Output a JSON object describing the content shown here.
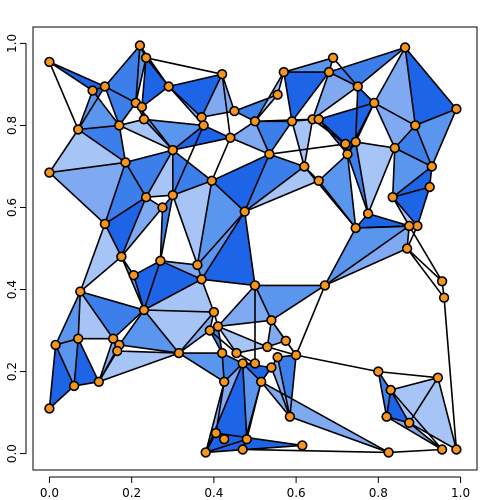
{
  "chart_data": {
    "type": "scatter",
    "subtype": "network-graph-with-filled-triangles",
    "title": "",
    "xlabel": "",
    "ylabel": "",
    "xlim": [
      -0.04,
      1.04
    ],
    "ylim": [
      -0.04,
      1.04
    ],
    "xticks": [
      "0.0",
      "0.2",
      "0.4",
      "0.6",
      "0.8",
      "1.0"
    ],
    "yticks": [
      "0.0",
      "0.2",
      "0.4",
      "0.6",
      "0.8",
      "1.0"
    ],
    "grid": false,
    "legend": "none",
    "colors": {
      "triangle_fill": [
        "#1E64E6",
        "#3C7FEA",
        "#5A96EE",
        "#7FAAF2",
        "#A6C4F6"
      ],
      "node_fill": "#F7941D",
      "stroke": "#000000"
    },
    "nodes": [
      [
        0.0,
        0.955
      ],
      [
        0.22,
        0.995
      ],
      [
        0.235,
        0.965
      ],
      [
        0.42,
        0.925
      ],
      [
        0.57,
        0.93
      ],
      [
        0.69,
        0.965
      ],
      [
        0.68,
        0.93
      ],
      [
        0.865,
        0.99
      ],
      [
        0.105,
        0.885
      ],
      [
        0.135,
        0.895
      ],
      [
        0.21,
        0.855
      ],
      [
        0.225,
        0.845
      ],
      [
        0.29,
        0.895
      ],
      [
        0.37,
        0.82
      ],
      [
        0.45,
        0.835
      ],
      [
        0.555,
        0.875
      ],
      [
        0.75,
        0.895
      ],
      [
        0.07,
        0.79
      ],
      [
        0.17,
        0.8
      ],
      [
        0.23,
        0.815
      ],
      [
        0.375,
        0.8
      ],
      [
        0.44,
        0.77
      ],
      [
        0.5,
        0.81
      ],
      [
        0.59,
        0.81
      ],
      [
        0.64,
        0.815
      ],
      [
        0.655,
        0.815
      ],
      [
        0.79,
        0.855
      ],
      [
        0.89,
        0.8
      ],
      [
        0.99,
        0.84
      ],
      [
        0.0,
        0.685
      ],
      [
        0.185,
        0.71
      ],
      [
        0.3,
        0.74
      ],
      [
        0.535,
        0.73
      ],
      [
        0.62,
        0.7
      ],
      [
        0.655,
        0.665
      ],
      [
        0.72,
        0.755
      ],
      [
        0.725,
        0.73
      ],
      [
        0.745,
        0.76
      ],
      [
        0.84,
        0.745
      ],
      [
        0.93,
        0.7
      ],
      [
        0.235,
        0.625
      ],
      [
        0.275,
        0.6
      ],
      [
        0.3,
        0.63
      ],
      [
        0.395,
        0.665
      ],
      [
        0.475,
        0.59
      ],
      [
        0.775,
        0.585
      ],
      [
        0.745,
        0.55
      ],
      [
        0.835,
        0.625
      ],
      [
        0.925,
        0.65
      ],
      [
        0.895,
        0.555
      ],
      [
        0.875,
        0.555
      ],
      [
        0.87,
        0.5
      ],
      [
        0.135,
        0.56
      ],
      [
        0.175,
        0.48
      ],
      [
        0.205,
        0.435
      ],
      [
        0.27,
        0.47
      ],
      [
        0.36,
        0.46
      ],
      [
        0.37,
        0.425
      ],
      [
        0.5,
        0.41
      ],
      [
        0.67,
        0.41
      ],
      [
        0.955,
        0.42
      ],
      [
        0.96,
        0.38
      ],
      [
        0.075,
        0.395
      ],
      [
        0.4,
        0.345
      ],
      [
        0.39,
        0.3
      ],
      [
        0.41,
        0.31
      ],
      [
        0.23,
        0.35
      ],
      [
        0.54,
        0.325
      ],
      [
        0.015,
        0.265
      ],
      [
        0.07,
        0.28
      ],
      [
        0.155,
        0.28
      ],
      [
        0.17,
        0.265
      ],
      [
        0.165,
        0.25
      ],
      [
        0.315,
        0.245
      ],
      [
        0.455,
        0.245
      ],
      [
        0.42,
        0.245
      ],
      [
        0.53,
        0.26
      ],
      [
        0.575,
        0.275
      ],
      [
        0.6,
        0.24
      ],
      [
        0.555,
        0.235
      ],
      [
        0.5,
        0.22
      ],
      [
        0.515,
        0.175
      ],
      [
        0.47,
        0.22
      ],
      [
        0.54,
        0.21
      ],
      [
        0.06,
        0.165
      ],
      [
        0.12,
        0.175
      ],
      [
        0.0,
        0.11
      ],
      [
        0.425,
        0.175
      ],
      [
        0.8,
        0.2
      ],
      [
        0.83,
        0.155
      ],
      [
        0.945,
        0.185
      ],
      [
        0.82,
        0.09
      ],
      [
        0.875,
        0.075
      ],
      [
        0.585,
        0.09
      ],
      [
        0.425,
        0.035
      ],
      [
        0.405,
        0.05
      ],
      [
        0.38,
        0.003
      ],
      [
        0.48,
        0.035
      ],
      [
        0.47,
        0.01
      ],
      [
        0.615,
        0.02
      ],
      [
        0.825,
        0.003
      ],
      [
        0.955,
        0.01
      ],
      [
        0.99,
        0.01
      ]
    ],
    "triangles": [
      [
        0,
        9,
        8
      ],
      [
        8,
        9,
        17
      ],
      [
        8,
        17,
        18
      ],
      [
        1,
        2,
        10
      ],
      [
        2,
        12,
        11
      ],
      [
        1,
        9,
        10
      ],
      [
        9,
        10,
        18
      ],
      [
        10,
        11,
        19
      ],
      [
        12,
        13,
        20
      ],
      [
        12,
        3,
        13
      ],
      [
        3,
        14,
        13
      ],
      [
        14,
        15,
        22
      ],
      [
        15,
        4,
        22
      ],
      [
        4,
        6,
        23
      ],
      [
        4,
        5,
        6
      ],
      [
        6,
        7,
        16
      ],
      [
        6,
        16,
        24
      ],
      [
        16,
        26,
        37
      ],
      [
        7,
        27,
        26
      ],
      [
        7,
        28,
        27
      ],
      [
        27,
        28,
        39
      ],
      [
        17,
        29,
        30
      ],
      [
        17,
        18,
        30
      ],
      [
        18,
        19,
        31
      ],
      [
        19,
        20,
        31
      ],
      [
        20,
        21,
        31
      ],
      [
        21,
        22,
        32
      ],
      [
        22,
        23,
        32
      ],
      [
        23,
        24,
        33
      ],
      [
        24,
        25,
        35
      ],
      [
        25,
        26,
        36
      ],
      [
        26,
        27,
        38
      ],
      [
        27,
        39,
        38
      ],
      [
        30,
        31,
        40
      ],
      [
        31,
        42,
        40
      ],
      [
        31,
        43,
        42
      ],
      [
        43,
        44,
        32
      ],
      [
        32,
        33,
        44
      ],
      [
        33,
        34,
        44
      ],
      [
        34,
        36,
        46
      ],
      [
        36,
        37,
        45
      ],
      [
        37,
        38,
        45
      ],
      [
        38,
        39,
        47
      ],
      [
        39,
        48,
        47
      ],
      [
        47,
        48,
        49
      ],
      [
        45,
        46,
        50
      ],
      [
        47,
        49,
        50
      ],
      [
        29,
        52,
        30
      ],
      [
        30,
        40,
        52
      ],
      [
        40,
        41,
        53
      ],
      [
        41,
        42,
        55
      ],
      [
        42,
        43,
        56
      ],
      [
        43,
        44,
        56
      ],
      [
        44,
        57,
        58
      ],
      [
        44,
        56,
        57
      ],
      [
        40,
        52,
        53
      ],
      [
        52,
        53,
        62
      ],
      [
        53,
        54,
        66
      ],
      [
        54,
        55,
        66
      ],
      [
        55,
        56,
        57
      ],
      [
        55,
        57,
        66
      ],
      [
        57,
        63,
        66
      ],
      [
        58,
        59,
        67
      ],
      [
        46,
        50,
        59
      ],
      [
        50,
        51,
        59
      ],
      [
        62,
        68,
        69
      ],
      [
        62,
        69,
        70
      ],
      [
        62,
        66,
        70
      ],
      [
        66,
        71,
        73
      ],
      [
        66,
        63,
        73
      ],
      [
        63,
        64,
        73
      ],
      [
        64,
        65,
        75
      ],
      [
        65,
        74,
        76
      ],
      [
        67,
        76,
        77
      ],
      [
        67,
        77,
        78
      ],
      [
        58,
        67,
        65
      ],
      [
        68,
        84,
        86
      ],
      [
        68,
        69,
        84
      ],
      [
        69,
        85,
        84
      ],
      [
        70,
        71,
        85
      ],
      [
        71,
        72,
        85
      ],
      [
        72,
        73,
        85
      ],
      [
        73,
        75,
        87
      ],
      [
        75,
        82,
        87
      ],
      [
        82,
        83,
        81
      ],
      [
        83,
        79,
        93
      ],
      [
        79,
        78,
        93
      ],
      [
        87,
        96,
        95
      ],
      [
        87,
        82,
        96
      ],
      [
        82,
        97,
        96
      ],
      [
        82,
        81,
        97
      ],
      [
        81,
        93,
        100
      ],
      [
        81,
        98,
        97
      ],
      [
        99,
        96,
        95
      ],
      [
        88,
        89,
        91
      ],
      [
        89,
        90,
        92
      ],
      [
        91,
        92,
        101
      ],
      [
        90,
        92,
        102
      ],
      [
        89,
        92,
        91
      ]
    ],
    "extra_edges": [
      [
        60,
        61
      ],
      [
        60,
        51
      ],
      [
        61,
        51
      ],
      [
        61,
        102
      ],
      [
        102,
        90
      ],
      [
        101,
        89
      ],
      [
        88,
        90
      ],
      [
        100,
        101
      ],
      [
        59,
        78
      ],
      [
        78,
        88
      ],
      [
        100,
        98
      ],
      [
        100,
        93
      ],
      [
        29,
        17
      ],
      [
        0,
        17
      ],
      [
        4,
        15
      ],
      [
        5,
        16
      ],
      [
        14,
        22
      ],
      [
        22,
        24
      ],
      [
        24,
        35
      ],
      [
        35,
        36
      ],
      [
        36,
        37
      ],
      [
        33,
        46
      ],
      [
        46,
        49
      ],
      [
        49,
        51
      ],
      [
        50,
        60
      ],
      [
        44,
        58
      ],
      [
        58,
        80
      ],
      [
        80,
        82
      ],
      [
        76,
        78
      ],
      [
        74,
        80
      ],
      [
        63,
        65
      ],
      [
        64,
        74
      ],
      [
        3,
        21
      ],
      [
        21,
        43
      ],
      [
        13,
        14
      ],
      [
        20,
        42
      ],
      [
        11,
        19
      ],
      [
        1,
        12
      ],
      [
        2,
        3
      ],
      [
        10,
        31
      ],
      [
        32,
        35
      ]
    ]
  }
}
